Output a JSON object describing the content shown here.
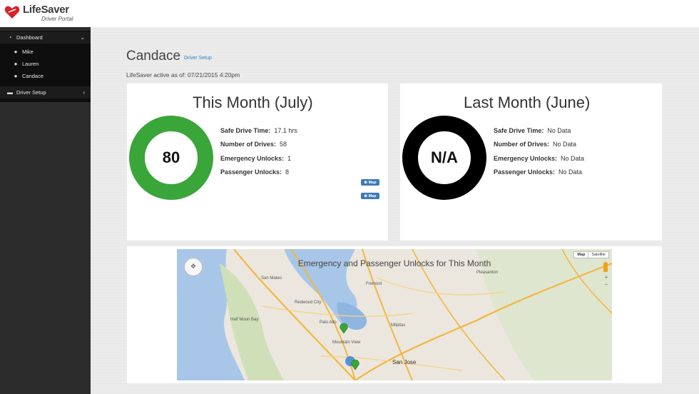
{
  "app": {
    "brand": "LifeSaver",
    "brand_sub": "Driver Portal",
    "brand_color": "#d9232a"
  },
  "sidebar": {
    "dashboard_label": "Dashboard",
    "users": [
      "Mike",
      "Lauren",
      "Candace"
    ],
    "driver_setup_label": "Driver Setup"
  },
  "page": {
    "title": "Candace",
    "setup_link": "Driver Setup",
    "active_line": "LifeSaver active as of: 07/21/2015 4:20pm"
  },
  "this_month": {
    "title": "This Month (July)",
    "score": "80",
    "score_value": 80,
    "colors": {
      "good": "#3aa63a",
      "warn": "#f2c200"
    },
    "stats": [
      {
        "label": "Safe Drive Time:",
        "value": "17.1 hrs"
      },
      {
        "label": "Number of Drives:",
        "value": "58"
      },
      {
        "label": "Emergency Unlocks:",
        "value": "1"
      },
      {
        "label": "Passenger Unlocks:",
        "value": "8"
      }
    ],
    "map_button_label": "Map"
  },
  "last_month": {
    "title": "Last Month (June)",
    "score": "N/A",
    "ring_color": "#000000",
    "stats": [
      {
        "label": "Safe Drive Time:",
        "value": "No Data"
      },
      {
        "label": "Number of Drives:",
        "value": "No Data"
      },
      {
        "label": "Emergency Unlocks:",
        "value": "No Data"
      },
      {
        "label": "Passenger Unlocks:",
        "value": "No Data"
      }
    ]
  },
  "map": {
    "title": "Emergency and Passenger Unlocks for This Month",
    "type_buttons": [
      "Map",
      "Satellite"
    ],
    "labels": {
      "san_mateo": "San Mateo",
      "fremont": "Fremont",
      "palo_alto": "Palo Alto",
      "milpitas": "Milpitas",
      "mountain_view": "Mountain View",
      "san_jose": "San Jose",
      "redwood_city": "Redwood City",
      "half_moon_bay": "Half Moon Bay",
      "pleasanton": "Pleasanton"
    }
  }
}
